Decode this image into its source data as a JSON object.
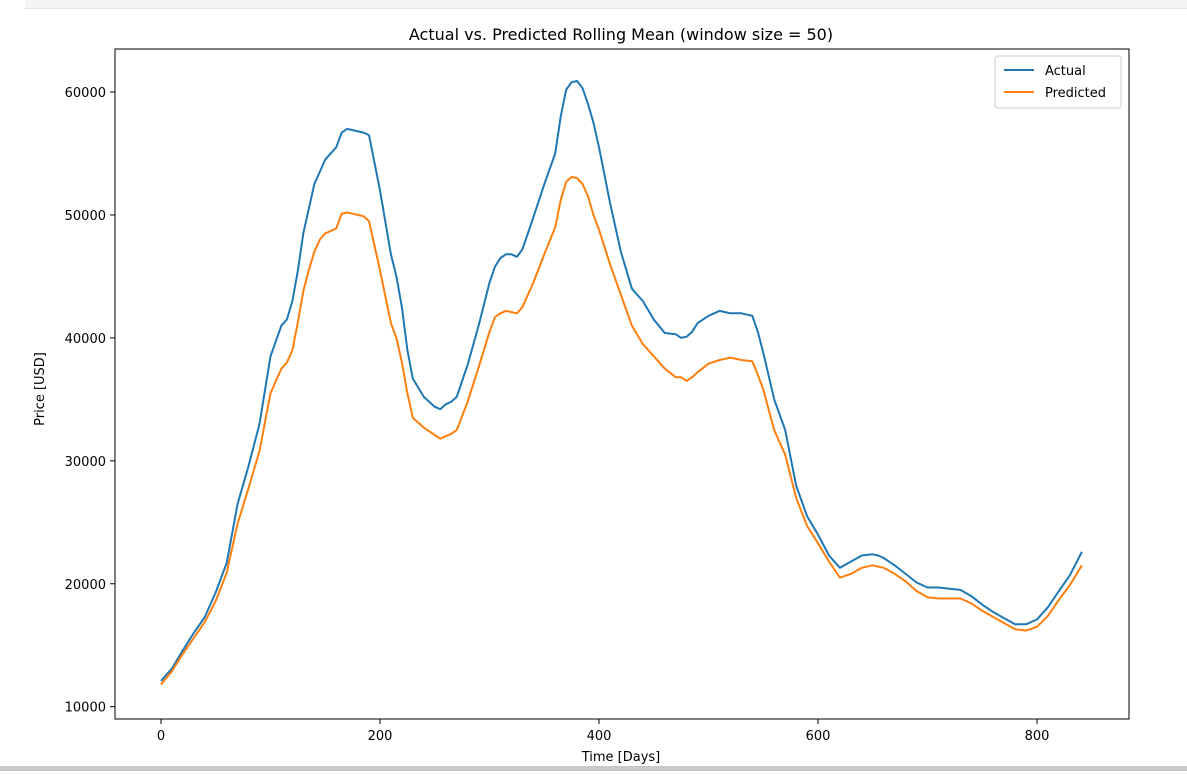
{
  "chart_data": {
    "type": "line",
    "title": "Actual vs. Predicted Rolling Mean (window size = 50)",
    "xlabel": "Time [Days]",
    "ylabel": "Price [USD]",
    "xlim": [
      -42,
      884
    ],
    "ylim": [
      9000,
      63500
    ],
    "xticks": [
      0,
      200,
      400,
      600,
      800
    ],
    "yticks": [
      10000,
      20000,
      30000,
      40000,
      50000,
      60000
    ],
    "grid": false,
    "legend_position": "top-right",
    "series": [
      {
        "name": "Actual",
        "color": "#1f77b4",
        "x": [
          0,
          10,
          20,
          30,
          40,
          50,
          60,
          70,
          80,
          90,
          100,
          110,
          115,
          120,
          125,
          130,
          135,
          140,
          145,
          150,
          160,
          165,
          170,
          175,
          180,
          185,
          190,
          200,
          210,
          215,
          220,
          225,
          230,
          240,
          250,
          255,
          260,
          265,
          270,
          280,
          290,
          300,
          305,
          310,
          315,
          320,
          325,
          330,
          340,
          350,
          360,
          365,
          370,
          375,
          380,
          385,
          390,
          395,
          400,
          410,
          420,
          430,
          440,
          450,
          460,
          470,
          475,
          480,
          485,
          490,
          500,
          510,
          520,
          530,
          540,
          545,
          550,
          560,
          570,
          580,
          590,
          600,
          610,
          620,
          630,
          640,
          650,
          655,
          660,
          670,
          680,
          690,
          700,
          710,
          720,
          730,
          740,
          750,
          760,
          770,
          780,
          790,
          800,
          810,
          820,
          830,
          841
        ],
        "values": [
          12100,
          13100,
          14600,
          16000,
          17300,
          19300,
          21700,
          26500,
          29600,
          33000,
          38500,
          41000,
          41500,
          43000,
          45500,
          48500,
          50500,
          52500,
          53500,
          54500,
          55500,
          56700,
          57000,
          56900,
          56800,
          56700,
          56500,
          52000,
          46800,
          45000,
          42500,
          39000,
          36700,
          35200,
          34400,
          34200,
          34600,
          34800,
          35200,
          37800,
          41000,
          44500,
          45800,
          46500,
          46800,
          46800,
          46600,
          47200,
          49800,
          52500,
          55000,
          58000,
          60200,
          60800,
          60900,
          60300,
          59000,
          57500,
          55500,
          51000,
          47000,
          44000,
          43000,
          41500,
          40400,
          40300,
          40000,
          40100,
          40500,
          41200,
          41800,
          42200,
          42000,
          42000,
          41800,
          40500,
          38800,
          35000,
          32500,
          28000,
          25500,
          24000,
          22300,
          21300,
          21800,
          22300,
          22400,
          22300,
          22100,
          21500,
          20800,
          20100,
          19700,
          19700,
          19600,
          19500,
          19000,
          18300,
          17700,
          17200,
          16700,
          16700,
          17100,
          18100,
          19400,
          20700,
          22600
        ]
      },
      {
        "name": "Predicted",
        "color": "#ff7f0e",
        "x": [
          0,
          10,
          20,
          30,
          40,
          50,
          60,
          70,
          80,
          90,
          100,
          110,
          115,
          120,
          125,
          130,
          135,
          140,
          145,
          150,
          160,
          165,
          170,
          175,
          180,
          185,
          190,
          200,
          210,
          215,
          220,
          225,
          230,
          240,
          250,
          255,
          260,
          265,
          270,
          280,
          290,
          300,
          305,
          310,
          315,
          320,
          325,
          330,
          340,
          350,
          360,
          365,
          370,
          375,
          380,
          385,
          390,
          395,
          400,
          410,
          420,
          430,
          440,
          450,
          460,
          470,
          475,
          480,
          485,
          490,
          500,
          510,
          520,
          530,
          540,
          545,
          550,
          560,
          570,
          580,
          590,
          600,
          610,
          620,
          630,
          640,
          650,
          655,
          660,
          670,
          680,
          690,
          700,
          710,
          720,
          730,
          740,
          750,
          760,
          770,
          780,
          790,
          800,
          810,
          820,
          830,
          841
        ],
        "values": [
          11800,
          12900,
          14300,
          15600,
          16900,
          18600,
          20900,
          24900,
          27800,
          30800,
          35500,
          37500,
          38000,
          39000,
          41300,
          43800,
          45500,
          47000,
          48000,
          48500,
          48900,
          50100,
          50200,
          50100,
          50000,
          49900,
          49500,
          45500,
          41200,
          40000,
          38000,
          35500,
          33500,
          32700,
          32100,
          31800,
          32000,
          32200,
          32500,
          34800,
          37600,
          40500,
          41700,
          42000,
          42200,
          42100,
          42000,
          42500,
          44500,
          46800,
          49000,
          51200,
          52700,
          53100,
          53000,
          52500,
          51500,
          50000,
          48800,
          46000,
          43500,
          41000,
          39500,
          38500,
          37500,
          36800,
          36800,
          36500,
          36800,
          37200,
          37900,
          38200,
          38400,
          38200,
          38100,
          37000,
          35800,
          32500,
          30500,
          27000,
          24700,
          23300,
          21800,
          20500,
          20800,
          21300,
          21500,
          21400,
          21300,
          20800,
          20200,
          19400,
          18900,
          18800,
          18800,
          18800,
          18400,
          17800,
          17300,
          16800,
          16300,
          16200,
          16500,
          17400,
          18700,
          19900,
          21500
        ]
      }
    ]
  }
}
